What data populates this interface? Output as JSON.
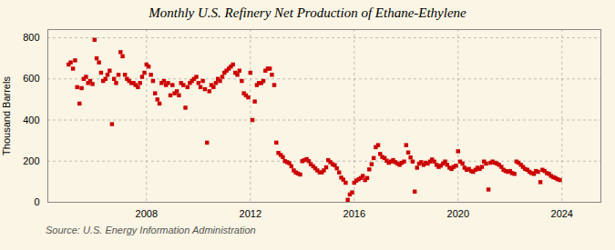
{
  "chart_data": {
    "type": "scatter",
    "title": "Monthly U.S. Refinery Net Production of Ethane-Ethylene",
    "ylabel": "Thousand Barrels",
    "source": "Source: U.S. Energy Information Administration",
    "color": "#cc0000",
    "marker": "square",
    "grid": true,
    "xlim": [
      2004.2,
      2025.5
    ],
    "ylim": [
      0,
      840
    ],
    "xticks": [
      2008,
      2012,
      2016,
      2020,
      2024
    ],
    "yticks": [
      0,
      200,
      400,
      600,
      800
    ],
    "x": [
      2005.0,
      2005.08,
      2005.17,
      2005.25,
      2005.33,
      2005.42,
      2005.5,
      2005.58,
      2005.67,
      2005.75,
      2005.83,
      2005.92,
      2006.0,
      2006.08,
      2006.17,
      2006.25,
      2006.33,
      2006.42,
      2006.5,
      2006.58,
      2006.67,
      2006.75,
      2006.83,
      2006.92,
      2007.0,
      2007.08,
      2007.17,
      2007.25,
      2007.33,
      2007.42,
      2007.5,
      2007.58,
      2007.67,
      2007.75,
      2007.83,
      2007.92,
      2008.0,
      2008.08,
      2008.17,
      2008.25,
      2008.33,
      2008.42,
      2008.5,
      2008.58,
      2008.67,
      2008.75,
      2008.83,
      2008.92,
      2009.0,
      2009.08,
      2009.17,
      2009.25,
      2009.33,
      2009.42,
      2009.5,
      2009.58,
      2009.67,
      2009.75,
      2009.83,
      2009.92,
      2010.0,
      2010.08,
      2010.17,
      2010.25,
      2010.33,
      2010.42,
      2010.5,
      2010.58,
      2010.67,
      2010.75,
      2010.83,
      2010.92,
      2011.0,
      2011.08,
      2011.17,
      2011.25,
      2011.33,
      2011.42,
      2011.5,
      2011.58,
      2011.67,
      2011.75,
      2011.83,
      2011.92,
      2012.0,
      2012.08,
      2012.17,
      2012.25,
      2012.33,
      2012.42,
      2012.5,
      2012.58,
      2012.67,
      2012.75,
      2012.83,
      2012.92,
      2013.0,
      2013.08,
      2013.17,
      2013.25,
      2013.33,
      2013.42,
      2013.5,
      2013.58,
      2013.67,
      2013.75,
      2013.83,
      2013.92,
      2014.0,
      2014.08,
      2014.17,
      2014.25,
      2014.33,
      2014.42,
      2014.5,
      2014.58,
      2014.67,
      2014.75,
      2014.83,
      2014.92,
      2015.0,
      2015.08,
      2015.17,
      2015.25,
      2015.33,
      2015.42,
      2015.5,
      2015.58,
      2015.67,
      2015.75,
      2015.83,
      2015.92,
      2016.0,
      2016.08,
      2016.17,
      2016.25,
      2016.33,
      2016.42,
      2016.5,
      2016.58,
      2016.67,
      2016.75,
      2016.83,
      2016.92,
      2017.0,
      2017.08,
      2017.17,
      2017.25,
      2017.33,
      2017.42,
      2017.5,
      2017.58,
      2017.67,
      2017.75,
      2017.83,
      2017.92,
      2018.0,
      2018.08,
      2018.17,
      2018.25,
      2018.33,
      2018.42,
      2018.5,
      2018.58,
      2018.67,
      2018.75,
      2018.83,
      2018.92,
      2019.0,
      2019.08,
      2019.17,
      2019.25,
      2019.33,
      2019.42,
      2019.5,
      2019.58,
      2019.67,
      2019.75,
      2019.83,
      2019.92,
      2020.0,
      2020.08,
      2020.17,
      2020.25,
      2020.33,
      2020.42,
      2020.5,
      2020.58,
      2020.67,
      2020.75,
      2020.83,
      2020.92,
      2021.0,
      2021.08,
      2021.17,
      2021.25,
      2021.33,
      2021.42,
      2021.5,
      2021.58,
      2021.67,
      2021.75,
      2021.83,
      2021.92,
      2022.0,
      2022.08,
      2022.17,
      2022.25,
      2022.33,
      2022.42,
      2022.5,
      2022.58,
      2022.67,
      2022.75,
      2022.83,
      2022.92,
      2023.0,
      2023.08,
      2023.17,
      2023.25,
      2023.33,
      2023.42,
      2023.5,
      2023.58,
      2023.67,
      2023.75,
      2023.83,
      2023.92
    ],
    "values": [
      670,
      680,
      650,
      690,
      560,
      480,
      555,
      600,
      610,
      580,
      590,
      575,
      790,
      700,
      680,
      630,
      590,
      600,
      620,
      640,
      380,
      600,
      580,
      620,
      730,
      710,
      620,
      600,
      590,
      580,
      580,
      570,
      560,
      580,
      610,
      630,
      670,
      660,
      620,
      590,
      530,
      500,
      480,
      580,
      590,
      570,
      580,
      520,
      570,
      530,
      540,
      520,
      580,
      570,
      460,
      560,
      580,
      590,
      600,
      610,
      580,
      560,
      590,
      550,
      290,
      540,
      570,
      560,
      580,
      600,
      590,
      610,
      630,
      640,
      650,
      660,
      670,
      630,
      620,
      640,
      590,
      530,
      520,
      510,
      630,
      400,
      490,
      570,
      580,
      580,
      590,
      640,
      650,
      650,
      620,
      570,
      290,
      240,
      230,
      220,
      200,
      195,
      190,
      175,
      155,
      145,
      140,
      135,
      200,
      205,
      210,
      200,
      185,
      175,
      165,
      155,
      145,
      145,
      155,
      170,
      205,
      195,
      185,
      180,
      165,
      145,
      120,
      110,
      95,
      12,
      38,
      48,
      95,
      105,
      112,
      118,
      128,
      108,
      118,
      160,
      185,
      215,
      268,
      278,
      235,
      220,
      215,
      202,
      192,
      198,
      205,
      195,
      188,
      182,
      192,
      198,
      278,
      242,
      218,
      198,
      52,
      168,
      188,
      195,
      182,
      192,
      188,
      198,
      208,
      198,
      182,
      172,
      178,
      188,
      198,
      182,
      168,
      162,
      172,
      178,
      248,
      198,
      188,
      168,
      158,
      162,
      152,
      148,
      158,
      168,
      162,
      172,
      198,
      188,
      62,
      192,
      198,
      192,
      188,
      182,
      172,
      158,
      152,
      148,
      152,
      142,
      138,
      198,
      192,
      182,
      172,
      162,
      158,
      148,
      142,
      138,
      152,
      148,
      98,
      158,
      152,
      142,
      138,
      128,
      122,
      118,
      112,
      108
    ]
  }
}
